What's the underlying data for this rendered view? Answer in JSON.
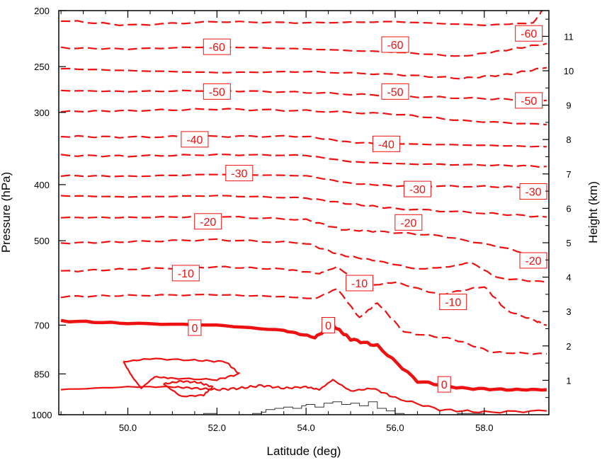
{
  "chart_data": {
    "type": "line",
    "xlabel": "Latitude (deg)",
    "ylabel_left": "Pressure (hPa)",
    "ylabel_right": "Height (km)",
    "xlim": [
      48.45,
      59.45
    ],
    "ylim_pressure": [
      1000,
      200
    ],
    "y_scale": "log",
    "x_ticks": [
      50.0,
      52.0,
      54.0,
      56.0,
      58.0
    ],
    "x_tick_labels": [
      "50.0",
      "52.0",
      "54.0",
      "56.0",
      "58.0"
    ],
    "pressure_ticks": [
      200,
      250,
      300,
      400,
      500,
      700,
      850,
      1000
    ],
    "pressure_tick_labels": [
      "200",
      "250",
      "300",
      "400",
      "500",
      "700",
      "850",
      "1000"
    ],
    "height_ticks": [
      1,
      2,
      3,
      4,
      5,
      6,
      7,
      8,
      9,
      10,
      11
    ],
    "height_tick_labels": [
      "1",
      "2",
      "3",
      "4",
      "5",
      "6",
      "7",
      "8",
      "9",
      "10",
      "11"
    ],
    "line_color": "#ee1111",
    "terrain_color": "#333333",
    "contour_interval": 5,
    "negative_contours_dashed": true,
    "zero_contour_bold": true,
    "contours": [
      {
        "level": -60,
        "x": [
          48.5,
          50,
          52,
          54,
          56,
          58,
          59.1,
          59.3
        ],
        "p": [
          208,
          212,
          209,
          210,
          209,
          212,
          210,
          200
        ]
      },
      {
        "level": -60,
        "x": [
          48.5,
          50,
          52,
          54,
          56,
          57.5,
          58.5,
          59.4
        ],
        "p": [
          232,
          233,
          231,
          233,
          236,
          240,
          234,
          228
        ]
      },
      {
        "level": -55,
        "x": [
          48.5,
          50,
          52,
          54,
          56,
          57.5,
          58.5,
          59.4
        ],
        "p": [
          252,
          254,
          256,
          255,
          258,
          262,
          258,
          251
        ]
      },
      {
        "level": -50,
        "x": [
          48.5,
          50,
          52,
          54,
          56,
          58,
          59.4
        ],
        "p": [
          275,
          276,
          275,
          277,
          281,
          284,
          286
        ]
      },
      {
        "level": -45,
        "x": [
          48.5,
          50,
          52,
          54,
          56,
          57.5,
          59.4
        ],
        "p": [
          299,
          298,
          296,
          298,
          302,
          310,
          315
        ]
      },
      {
        "level": -40,
        "x": [
          48.5,
          50,
          52,
          54,
          55,
          56,
          58,
          59.4
        ],
        "p": [
          330,
          331,
          330,
          330,
          338,
          340,
          342,
          344
        ]
      },
      {
        "level": -35,
        "x": [
          48.5,
          50,
          52,
          54,
          55,
          56,
          58,
          59.4
        ],
        "p": [
          356,
          357,
          355,
          356,
          365,
          368,
          370,
          372
        ]
      },
      {
        "level": -30,
        "x": [
          48.5,
          50,
          52,
          54,
          55,
          56,
          58,
          59.4
        ],
        "p": [
          386,
          387,
          384,
          386,
          398,
          402,
          403,
          405
        ]
      },
      {
        "level": -25,
        "x": [
          48.5,
          50,
          52,
          54,
          55,
          56,
          58,
          59.4
        ],
        "p": [
          418,
          420,
          418,
          422,
          432,
          440,
          448,
          455
        ]
      },
      {
        "level": -20,
        "x": [
          48.5,
          50,
          52,
          54,
          54.8,
          55.6,
          57,
          58.5,
          59.4
        ],
        "p": [
          456,
          456,
          454,
          460,
          478,
          482,
          490,
          515,
          540
        ]
      },
      {
        "level": -15,
        "x": [
          48.5,
          50,
          52,
          54,
          54.8,
          55.5,
          56.5,
          57.2,
          57.7,
          58.3,
          59.4
        ],
        "p": [
          505,
          502,
          498,
          505,
          530,
          540,
          560,
          555,
          545,
          580,
          590
        ]
      },
      {
        "level": -10,
        "x": [
          48.5,
          50,
          52,
          53.5,
          54.3,
          54.7,
          55.3,
          56,
          57,
          58,
          58.5,
          59.2,
          59.4
        ],
        "p": [
          565,
          560,
          555,
          560,
          570,
          555,
          600,
          590,
          620,
          600,
          660,
          690,
          700
        ]
      },
      {
        "level": -5,
        "x": [
          48.5,
          50,
          52,
          53.5,
          54.2,
          54.7,
          55.2,
          55.6,
          56.2,
          57.3,
          58.2,
          59.4
        ],
        "p": [
          625,
          622,
          620,
          625,
          630,
          605,
          680,
          640,
          720,
          740,
          780,
          785
        ]
      },
      {
        "level": 0,
        "x": [
          48.5,
          50,
          52,
          53.5,
          54.2,
          54.6,
          55,
          55.6,
          56.5,
          57.5,
          58.5,
          59.4
        ],
        "p": [
          688,
          695,
          700,
          715,
          735,
          700,
          740,
          760,
          875,
          900,
          905,
          905
        ]
      },
      {
        "level": 0,
        "x": [
          48.5,
          50,
          51,
          51.5,
          52,
          52.5,
          53,
          53.5,
          54,
          54.3,
          54.6,
          55,
          55.5,
          56,
          57,
          58,
          59.4
        ],
        "p": [
          905,
          895,
          895,
          900,
          905,
          900,
          890,
          900,
          895,
          905,
          870,
          910,
          900,
          935,
          980,
          990,
          985
        ]
      },
      {
        "level": 5,
        "x": [
          49.9,
          50.5,
          51.5,
          52.2,
          52.5,
          52.0,
          51.0,
          50.6,
          50.3,
          50.1,
          49.9
        ],
        "p": [
          810,
          800,
          805,
          810,
          850,
          870,
          865,
          860,
          900,
          860,
          810
        ]
      },
      {
        "level": 5,
        "x": [
          50.8,
          51.2,
          51.6,
          51.9,
          51.7,
          51.2,
          50.8
        ],
        "p": [
          885,
          875,
          880,
          895,
          925,
          930,
          885
        ]
      }
    ],
    "contour_labels": [
      {
        "text": "-60",
        "x": 52.0,
        "p": 231
      },
      {
        "text": "-60",
        "x": 56.0,
        "p": 229
      },
      {
        "text": "-60",
        "x": 59.0,
        "p": 219
      },
      {
        "text": "-50",
        "x": 52.0,
        "p": 276
      },
      {
        "text": "-50",
        "x": 56.0,
        "p": 276
      },
      {
        "text": "-50",
        "x": 59.0,
        "p": 286
      },
      {
        "text": "-40",
        "x": 51.5,
        "p": 334
      },
      {
        "text": "-40",
        "x": 55.8,
        "p": 340
      },
      {
        "text": "-30",
        "x": 52.5,
        "p": 382
      },
      {
        "text": "-30",
        "x": 56.5,
        "p": 407
      },
      {
        "text": "-30",
        "x": 59.1,
        "p": 411
      },
      {
        "text": "-20",
        "x": 51.8,
        "p": 463
      },
      {
        "text": "-20",
        "x": 56.3,
        "p": 465
      },
      {
        "text": "-20",
        "x": 59.1,
        "p": 541
      },
      {
        "text": "-10",
        "x": 51.3,
        "p": 569
      },
      {
        "text": "-10",
        "x": 55.2,
        "p": 592
      },
      {
        "text": "-10",
        "x": 57.3,
        "p": 638
      },
      {
        "text": "0",
        "x": 51.5,
        "p": 707
      },
      {
        "text": "0",
        "x": 54.5,
        "p": 700
      },
      {
        "text": "0",
        "x": 57.1,
        "p": 886
      }
    ],
    "terrain": {
      "x": [
        52.6,
        52.8,
        53.0,
        53.1,
        53.3,
        53.5,
        53.7,
        53.9,
        54.0,
        54.2,
        54.4,
        54.6,
        54.8,
        55.0,
        55.2,
        55.4,
        55.6,
        55.8,
        56.0,
        56.2,
        56.5,
        57.2,
        57.4,
        57.6,
        57.8,
        58.0,
        59.4
      ],
      "p": [
        1000,
        995,
        990,
        980,
        975,
        970,
        975,
        965,
        960,
        970,
        955,
        950,
        960,
        955,
        965,
        950,
        975,
        985,
        995,
        1000,
        1000,
        1000,
        995,
        995,
        995,
        1000,
        1000
      ]
    },
    "terrain_extra": {
      "x": [
        51.7,
        51.7,
        52.0,
        52.0
      ],
      "p": [
        1000,
        995,
        995,
        1000
      ]
    }
  }
}
